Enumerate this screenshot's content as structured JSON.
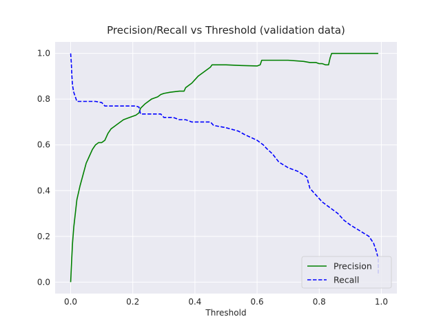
{
  "chart_data": {
    "type": "line",
    "title": "Precision/Recall vs Threshold (validation data)",
    "xlabel": "Threshold",
    "ylabel": "",
    "xlim": [
      -0.05,
      1.05
    ],
    "ylim": [
      -0.05,
      1.05
    ],
    "xticks": [
      0.0,
      0.2,
      0.4,
      0.6,
      0.8,
      1.0
    ],
    "yticks": [
      0.0,
      0.2,
      0.4,
      0.6,
      0.8,
      1.0
    ],
    "xtick_labels": [
      "0.0",
      "0.2",
      "0.4",
      "0.6",
      "0.8",
      "1.0"
    ],
    "ytick_labels": [
      "0.0",
      "0.2",
      "0.4",
      "0.6",
      "0.8",
      "1.0"
    ],
    "grid": true,
    "legend_position": "lower-right",
    "series": [
      {
        "name": "Precision",
        "color": "#008000",
        "style": "solid",
        "x": [
          0.0,
          0.003,
          0.006,
          0.01,
          0.015,
          0.02,
          0.03,
          0.04,
          0.05,
          0.06,
          0.07,
          0.08,
          0.09,
          0.1,
          0.11,
          0.12,
          0.13,
          0.14,
          0.15,
          0.17,
          0.19,
          0.21,
          0.22,
          0.225,
          0.24,
          0.26,
          0.28,
          0.29,
          0.3,
          0.32,
          0.35,
          0.365,
          0.37,
          0.39,
          0.41,
          0.43,
          0.45,
          0.455,
          0.5,
          0.55,
          0.6,
          0.61,
          0.615,
          0.65,
          0.7,
          0.75,
          0.77,
          0.79,
          0.8,
          0.81,
          0.82,
          0.83,
          0.835,
          0.84,
          0.9,
          0.95,
          0.99
        ],
        "y": [
          0.0,
          0.09,
          0.17,
          0.24,
          0.3,
          0.36,
          0.42,
          0.47,
          0.52,
          0.55,
          0.58,
          0.6,
          0.61,
          0.61,
          0.62,
          0.65,
          0.67,
          0.68,
          0.69,
          0.71,
          0.72,
          0.73,
          0.74,
          0.76,
          0.78,
          0.8,
          0.81,
          0.82,
          0.825,
          0.83,
          0.835,
          0.835,
          0.85,
          0.87,
          0.9,
          0.92,
          0.94,
          0.95,
          0.95,
          0.947,
          0.945,
          0.95,
          0.97,
          0.97,
          0.97,
          0.965,
          0.96,
          0.96,
          0.955,
          0.955,
          0.95,
          0.95,
          0.98,
          1.0,
          1.0,
          1.0,
          1.0
        ]
      },
      {
        "name": "Recall",
        "color": "#0000ff",
        "style": "dashed",
        "x": [
          0.0,
          0.002,
          0.004,
          0.006,
          0.01,
          0.015,
          0.02,
          0.05,
          0.08,
          0.1,
          0.11,
          0.15,
          0.19,
          0.21,
          0.22,
          0.225,
          0.25,
          0.29,
          0.3,
          0.33,
          0.35,
          0.37,
          0.39,
          0.41,
          0.43,
          0.45,
          0.46,
          0.5,
          0.54,
          0.56,
          0.6,
          0.62,
          0.63,
          0.65,
          0.67,
          0.7,
          0.73,
          0.76,
          0.77,
          0.79,
          0.81,
          0.83,
          0.86,
          0.88,
          0.9,
          0.93,
          0.96,
          0.975,
          0.985,
          0.99,
          0.99
        ],
        "y": [
          1.0,
          0.96,
          0.9,
          0.86,
          0.83,
          0.81,
          0.79,
          0.79,
          0.79,
          0.785,
          0.77,
          0.77,
          0.77,
          0.77,
          0.765,
          0.735,
          0.735,
          0.735,
          0.72,
          0.72,
          0.71,
          0.71,
          0.7,
          0.7,
          0.7,
          0.7,
          0.685,
          0.675,
          0.66,
          0.645,
          0.62,
          0.6,
          0.585,
          0.56,
          0.525,
          0.5,
          0.485,
          0.46,
          0.41,
          0.38,
          0.35,
          0.33,
          0.3,
          0.27,
          0.25,
          0.225,
          0.2,
          0.17,
          0.13,
          0.1,
          0.03
        ]
      }
    ]
  }
}
